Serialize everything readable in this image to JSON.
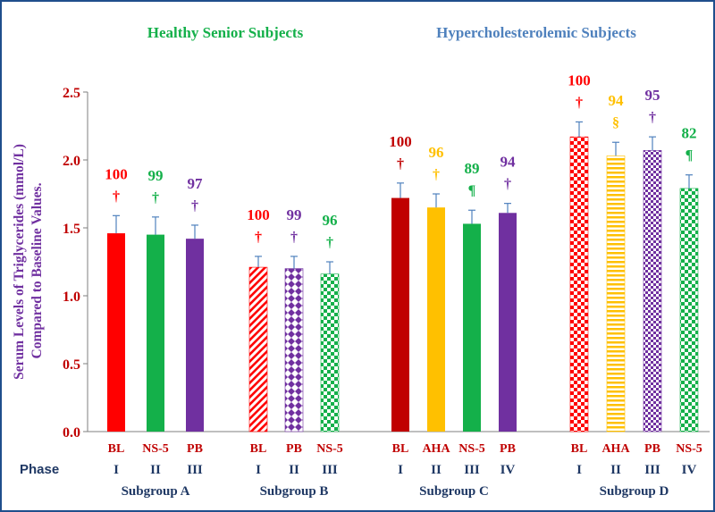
{
  "chart_data": {
    "type": "bar",
    "ylabel_line1": "Serum Levels of  Triglycerides (mmol/L)",
    "ylabel_line2": "Compared to  Baseline Values.",
    "ylim": [
      0,
      2.5
    ],
    "yticks": [
      "0.0",
      "0.5",
      "1.0",
      "1.5",
      "2.0",
      "2.5"
    ],
    "ytick_values": [
      0,
      0.5,
      1.0,
      1.5,
      2.0,
      2.5
    ],
    "headings": [
      {
        "text": "Healthy  Senior  Subjects",
        "color": "#14b04a"
      },
      {
        "text": "Hypercholesterolemic Subjects",
        "color": "#4f81bd"
      }
    ],
    "phase_label": "Phase",
    "subgroups": [
      {
        "name": "Subgroup  A",
        "bars": [
          {
            "label": "BL",
            "phase": "I",
            "value": 1.46,
            "err": 0.13,
            "pct": "100",
            "sym": "†",
            "color": "#ff0000",
            "pattern": "solid"
          },
          {
            "label": "NS-5",
            "phase": "II",
            "value": 1.45,
            "err": 0.13,
            "pct": "99",
            "sym": "†",
            "color": "#14b04a",
            "pattern": "solid"
          },
          {
            "label": "PB",
            "phase": "III",
            "value": 1.42,
            "err": 0.1,
            "pct": "97",
            "sym": "†",
            "color": "#7030a0",
            "pattern": "solid"
          }
        ]
      },
      {
        "name": "Subgroup  B",
        "bars": [
          {
            "label": "BL",
            "phase": "I",
            "value": 1.21,
            "err": 0.08,
            "pct": "100",
            "sym": "†",
            "color": "#ff0000",
            "pattern": "diag"
          },
          {
            "label": "PB",
            "phase": "II",
            "value": 1.2,
            "err": 0.09,
            "pct": "99",
            "sym": "†",
            "color": "#7030a0",
            "pattern": "diamond"
          },
          {
            "label": "NS-5",
            "phase": "III",
            "value": 1.16,
            "err": 0.09,
            "pct": "96",
            "sym": "†",
            "color": "#14b04a",
            "pattern": "check"
          }
        ]
      },
      {
        "name": "Subgroup  C",
        "bars": [
          {
            "label": "BL",
            "phase": "I",
            "value": 1.72,
            "err": 0.11,
            "pct": "100",
            "sym": "†",
            "color": "#c00000",
            "pattern": "solid"
          },
          {
            "label": "AHA",
            "phase": "II",
            "value": 1.65,
            "err": 0.1,
            "pct": "96",
            "sym": "†",
            "color": "#ffc000",
            "pattern": "solid"
          },
          {
            "label": "NS-5",
            "phase": "III",
            "value": 1.53,
            "err": 0.1,
            "pct": "89",
            "sym": "¶",
            "color": "#14b04a",
            "pattern": "solid"
          },
          {
            "label": "PB",
            "phase": "IV",
            "value": 1.61,
            "err": 0.07,
            "pct": "94",
            "sym": "†",
            "color": "#7030a0",
            "pattern": "solid"
          }
        ]
      },
      {
        "name": "Subgroup  D",
        "bars": [
          {
            "label": "BL",
            "phase": "I",
            "value": 2.17,
            "err": 0.11,
            "pct": "100",
            "sym": "†",
            "color": "#ff0000",
            "pattern": "check"
          },
          {
            "label": "AHA",
            "phase": "II",
            "value": 2.03,
            "err": 0.1,
            "pct": "94",
            "sym": "§",
            "color": "#ffc000",
            "pattern": "hstripe"
          },
          {
            "label": "PB",
            "phase": "III",
            "value": 2.07,
            "err": 0.1,
            "pct": "95",
            "sym": "†",
            "color": "#7030a0",
            "pattern": "smallcheck"
          },
          {
            "label": "NS-5",
            "phase": "IV",
            "value": 1.79,
            "err": 0.1,
            "pct": "82",
            "sym": "¶",
            "color": "#14b04a",
            "pattern": "check"
          }
        ]
      }
    ]
  }
}
